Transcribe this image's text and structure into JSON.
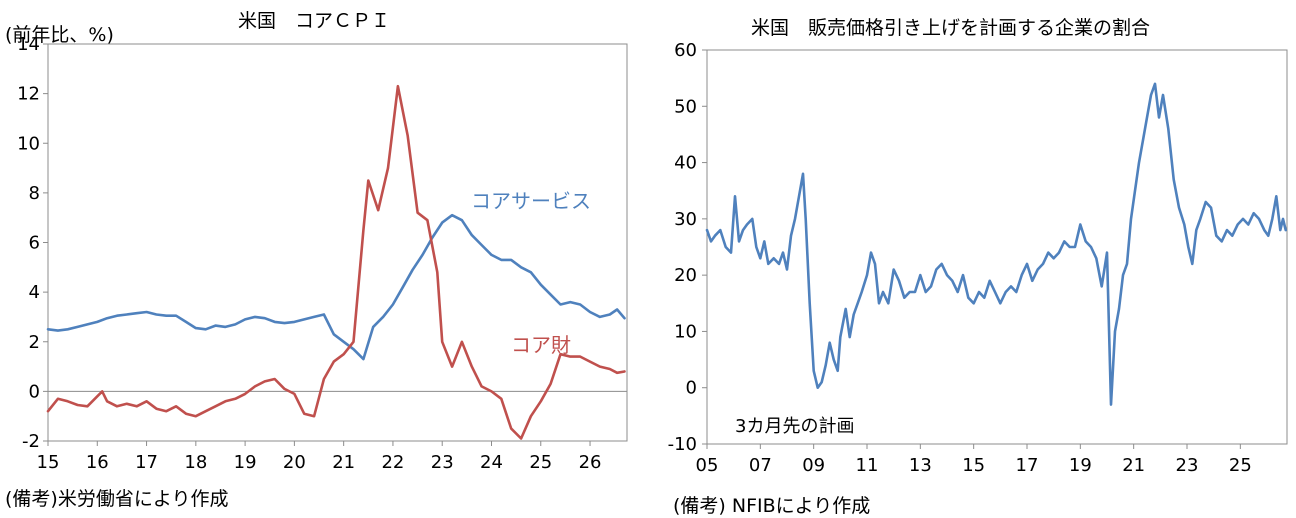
{
  "chart_data": [
    {
      "type": "line",
      "title": "米国　コアＣＰＩ",
      "unit_label": "(前年比、%)",
      "source": "(備考)米労働省により作成",
      "ylim": [
        -2,
        14
      ],
      "yticks": [
        -2,
        0,
        2,
        4,
        6,
        8,
        10,
        12,
        14
      ],
      "xlim": [
        2015,
        2026.75
      ],
      "xticks": [
        {
          "x": 2015,
          "label": "15"
        },
        {
          "x": 2016,
          "label": "16"
        },
        {
          "x": 2017,
          "label": "17"
        },
        {
          "x": 2018,
          "label": "18"
        },
        {
          "x": 2019,
          "label": "19"
        },
        {
          "x": 2020,
          "label": "20"
        },
        {
          "x": 2021,
          "label": "21"
        },
        {
          "x": 2022,
          "label": "22"
        },
        {
          "x": 2023,
          "label": "23"
        },
        {
          "x": 2024,
          "label": "24"
        },
        {
          "x": 2025,
          "label": "25"
        },
        {
          "x": 2026,
          "label": "26"
        }
      ],
      "grid": false,
      "zero_line": true,
      "series": [
        {
          "name": "コアサービス",
          "color": "#4f81bd",
          "points": [
            [
              2015.0,
              2.5
            ],
            [
              2015.2,
              2.45
            ],
            [
              2015.4,
              2.5
            ],
            [
              2015.6,
              2.6
            ],
            [
              2015.8,
              2.7
            ],
            [
              2016.0,
              2.8
            ],
            [
              2016.2,
              2.95
            ],
            [
              2016.4,
              3.05
            ],
            [
              2016.6,
              3.1
            ],
            [
              2016.8,
              3.15
            ],
            [
              2017.0,
              3.2
            ],
            [
              2017.2,
              3.1
            ],
            [
              2017.4,
              3.05
            ],
            [
              2017.6,
              3.05
            ],
            [
              2017.8,
              2.8
            ],
            [
              2018.0,
              2.55
            ],
            [
              2018.2,
              2.5
            ],
            [
              2018.4,
              2.65
            ],
            [
              2018.6,
              2.6
            ],
            [
              2018.8,
              2.7
            ],
            [
              2019.0,
              2.9
            ],
            [
              2019.2,
              3.0
            ],
            [
              2019.4,
              2.95
            ],
            [
              2019.6,
              2.8
            ],
            [
              2019.8,
              2.75
            ],
            [
              2020.0,
              2.8
            ],
            [
              2020.2,
              2.9
            ],
            [
              2020.4,
              3.0
            ],
            [
              2020.6,
              3.1
            ],
            [
              2020.8,
              2.3
            ],
            [
              2021.0,
              2.0
            ],
            [
              2021.2,
              1.7
            ],
            [
              2021.4,
              1.3
            ],
            [
              2021.6,
              2.6
            ],
            [
              2021.8,
              3.0
            ],
            [
              2022.0,
              3.5
            ],
            [
              2022.2,
              4.2
            ],
            [
              2022.4,
              4.9
            ],
            [
              2022.6,
              5.5
            ],
            [
              2022.8,
              6.2
            ],
            [
              2023.0,
              6.8
            ],
            [
              2023.2,
              7.1
            ],
            [
              2023.4,
              6.9
            ],
            [
              2023.6,
              6.3
            ],
            [
              2023.8,
              5.9
            ],
            [
              2024.0,
              5.5
            ],
            [
              2024.2,
              5.3
            ],
            [
              2024.4,
              5.3
            ],
            [
              2024.6,
              5.0
            ],
            [
              2024.8,
              4.8
            ],
            [
              2025.0,
              4.3
            ],
            [
              2025.2,
              3.9
            ],
            [
              2025.4,
              3.5
            ],
            [
              2025.6,
              3.6
            ],
            [
              2025.8,
              3.5
            ],
            [
              2026.0,
              3.2
            ],
            [
              2026.2,
              3.0
            ],
            [
              2026.4,
              3.1
            ],
            [
              2026.55,
              3.3
            ],
            [
              2026.7,
              2.95
            ]
          ]
        },
        {
          "name": "コア財",
          "color": "#c0504d",
          "points": [
            [
              2015.0,
              -0.8
            ],
            [
              2015.2,
              -0.3
            ],
            [
              2015.4,
              -0.4
            ],
            [
              2015.6,
              -0.55
            ],
            [
              2015.8,
              -0.6
            ],
            [
              2016.0,
              -0.2
            ],
            [
              2016.1,
              0.0
            ],
            [
              2016.2,
              -0.4
            ],
            [
              2016.4,
              -0.6
            ],
            [
              2016.6,
              -0.5
            ],
            [
              2016.8,
              -0.6
            ],
            [
              2017.0,
              -0.4
            ],
            [
              2017.2,
              -0.7
            ],
            [
              2017.4,
              -0.8
            ],
            [
              2017.6,
              -0.6
            ],
            [
              2017.8,
              -0.9
            ],
            [
              2018.0,
              -1.0
            ],
            [
              2018.2,
              -0.8
            ],
            [
              2018.4,
              -0.6
            ],
            [
              2018.6,
              -0.4
            ],
            [
              2018.8,
              -0.3
            ],
            [
              2019.0,
              -0.1
            ],
            [
              2019.2,
              0.2
            ],
            [
              2019.4,
              0.4
            ],
            [
              2019.6,
              0.5
            ],
            [
              2019.8,
              0.1
            ],
            [
              2020.0,
              -0.1
            ],
            [
              2020.2,
              -0.9
            ],
            [
              2020.4,
              -1.0
            ],
            [
              2020.6,
              0.5
            ],
            [
              2020.8,
              1.2
            ],
            [
              2021.0,
              1.5
            ],
            [
              2021.2,
              2.0
            ],
            [
              2021.4,
              6.5
            ],
            [
              2021.5,
              8.5
            ],
            [
              2021.7,
              7.3
            ],
            [
              2021.9,
              9.0
            ],
            [
              2022.1,
              12.3
            ],
            [
              2022.3,
              10.3
            ],
            [
              2022.5,
              7.2
            ],
            [
              2022.7,
              6.9
            ],
            [
              2022.9,
              4.8
            ],
            [
              2023.0,
              2.0
            ],
            [
              2023.2,
              1.0
            ],
            [
              2023.4,
              2.0
            ],
            [
              2023.6,
              1.0
            ],
            [
              2023.8,
              0.2
            ],
            [
              2024.0,
              0.0
            ],
            [
              2024.2,
              -0.3
            ],
            [
              2024.4,
              -1.5
            ],
            [
              2024.6,
              -1.9
            ],
            [
              2024.8,
              -1.0
            ],
            [
              2025.0,
              -0.4
            ],
            [
              2025.2,
              0.3
            ],
            [
              2025.4,
              1.5
            ],
            [
              2025.6,
              1.4
            ],
            [
              2025.8,
              1.4
            ],
            [
              2026.0,
              1.2
            ],
            [
              2026.2,
              1.0
            ],
            [
              2026.4,
              0.9
            ],
            [
              2026.55,
              0.75
            ],
            [
              2026.7,
              0.8
            ]
          ]
        }
      ],
      "series_labels": [
        {
          "series": 0,
          "text": "コアサービス"
        },
        {
          "series": 1,
          "text": "コア財"
        }
      ]
    },
    {
      "type": "line",
      "title": "米国　販売価格引き上げを計画する企業の割合",
      "annotation": "3カ月先の計画",
      "source": "(備考) NFIBにより作成",
      "ylim": [
        -10,
        60
      ],
      "yticks": [
        -10,
        0,
        10,
        20,
        30,
        40,
        50,
        60
      ],
      "xlim": [
        2005,
        2026.75
      ],
      "xticks": [
        {
          "x": 2005,
          "label": "05"
        },
        {
          "x": 2007,
          "label": "07"
        },
        {
          "x": 2009,
          "label": "09"
        },
        {
          "x": 2011,
          "label": "11"
        },
        {
          "x": 2013,
          "label": "13"
        },
        {
          "x": 2015,
          "label": "15"
        },
        {
          "x": 2017,
          "label": "17"
        },
        {
          "x": 2019,
          "label": "19"
        },
        {
          "x": 2021,
          "label": "21"
        },
        {
          "x": 2023,
          "label": "23"
        },
        {
          "x": 2025,
          "label": "25"
        }
      ],
      "grid": false,
      "series": [
        {
          "color": "#4f81bd",
          "points": [
            [
              2005.0,
              28
            ],
            [
              2005.15,
              26
            ],
            [
              2005.3,
              27
            ],
            [
              2005.5,
              28
            ],
            [
              2005.7,
              25
            ],
            [
              2005.9,
              24
            ],
            [
              2006.05,
              34
            ],
            [
              2006.2,
              26
            ],
            [
              2006.35,
              28
            ],
            [
              2006.5,
              29
            ],
            [
              2006.7,
              30
            ],
            [
              2006.85,
              25
            ],
            [
              2007.0,
              23
            ],
            [
              2007.15,
              26
            ],
            [
              2007.3,
              22
            ],
            [
              2007.5,
              23
            ],
            [
              2007.7,
              22
            ],
            [
              2007.85,
              24
            ],
            [
              2008.0,
              21
            ],
            [
              2008.15,
              27
            ],
            [
              2008.3,
              30
            ],
            [
              2008.45,
              34
            ],
            [
              2008.6,
              38
            ],
            [
              2008.7,
              30
            ],
            [
              2008.85,
              15
            ],
            [
              2009.0,
              3
            ],
            [
              2009.15,
              0
            ],
            [
              2009.3,
              1
            ],
            [
              2009.45,
              4
            ],
            [
              2009.6,
              8
            ],
            [
              2009.75,
              5
            ],
            [
              2009.9,
              3
            ],
            [
              2010.0,
              9
            ],
            [
              2010.2,
              14
            ],
            [
              2010.35,
              9
            ],
            [
              2010.5,
              13
            ],
            [
              2010.65,
              15
            ],
            [
              2010.8,
              17
            ],
            [
              2011.0,
              20
            ],
            [
              2011.15,
              24
            ],
            [
              2011.3,
              22
            ],
            [
              2011.45,
              15
            ],
            [
              2011.6,
              17
            ],
            [
              2011.8,
              15
            ],
            [
              2012.0,
              21
            ],
            [
              2012.2,
              19
            ],
            [
              2012.4,
              16
            ],
            [
              2012.6,
              17
            ],
            [
              2012.8,
              17
            ],
            [
              2013.0,
              20
            ],
            [
              2013.2,
              17
            ],
            [
              2013.4,
              18
            ],
            [
              2013.6,
              21
            ],
            [
              2013.8,
              22
            ],
            [
              2014.0,
              20
            ],
            [
              2014.2,
              19
            ],
            [
              2014.4,
              17
            ],
            [
              2014.6,
              20
            ],
            [
              2014.8,
              16
            ],
            [
              2015.0,
              15
            ],
            [
              2015.2,
              17
            ],
            [
              2015.4,
              16
            ],
            [
              2015.6,
              19
            ],
            [
              2015.8,
              17
            ],
            [
              2016.0,
              15
            ],
            [
              2016.2,
              17
            ],
            [
              2016.4,
              18
            ],
            [
              2016.6,
              17
            ],
            [
              2016.8,
              20
            ],
            [
              2017.0,
              22
            ],
            [
              2017.2,
              19
            ],
            [
              2017.4,
              21
            ],
            [
              2017.6,
              22
            ],
            [
              2017.8,
              24
            ],
            [
              2018.0,
              23
            ],
            [
              2018.2,
              24
            ],
            [
              2018.4,
              26
            ],
            [
              2018.6,
              25
            ],
            [
              2018.8,
              25
            ],
            [
              2019.0,
              29
            ],
            [
              2019.2,
              26
            ],
            [
              2019.4,
              25
            ],
            [
              2019.6,
              23
            ],
            [
              2019.8,
              18
            ],
            [
              2020.0,
              24
            ],
            [
              2020.15,
              -3
            ],
            [
              2020.3,
              10
            ],
            [
              2020.45,
              14
            ],
            [
              2020.6,
              20
            ],
            [
              2020.75,
              22
            ],
            [
              2020.9,
              30
            ],
            [
              2021.05,
              35
            ],
            [
              2021.2,
              40
            ],
            [
              2021.35,
              44
            ],
            [
              2021.5,
              48
            ],
            [
              2021.65,
              52
            ],
            [
              2021.8,
              54
            ],
            [
              2021.95,
              48
            ],
            [
              2022.1,
              52
            ],
            [
              2022.3,
              46
            ],
            [
              2022.5,
              37
            ],
            [
              2022.7,
              32
            ],
            [
              2022.9,
              29
            ],
            [
              2023.05,
              25
            ],
            [
              2023.2,
              22
            ],
            [
              2023.35,
              28
            ],
            [
              2023.5,
              30
            ],
            [
              2023.7,
              33
            ],
            [
              2023.9,
              32
            ],
            [
              2024.1,
              27
            ],
            [
              2024.3,
              26
            ],
            [
              2024.5,
              28
            ],
            [
              2024.7,
              27
            ],
            [
              2024.9,
              29
            ],
            [
              2025.1,
              30
            ],
            [
              2025.3,
              29
            ],
            [
              2025.5,
              31
            ],
            [
              2025.7,
              30
            ],
            [
              2025.9,
              28
            ],
            [
              2026.05,
              27
            ],
            [
              2026.2,
              30
            ],
            [
              2026.35,
              34
            ],
            [
              2026.5,
              28
            ],
            [
              2026.6,
              30
            ],
            [
              2026.7,
              28
            ]
          ]
        }
      ]
    }
  ]
}
